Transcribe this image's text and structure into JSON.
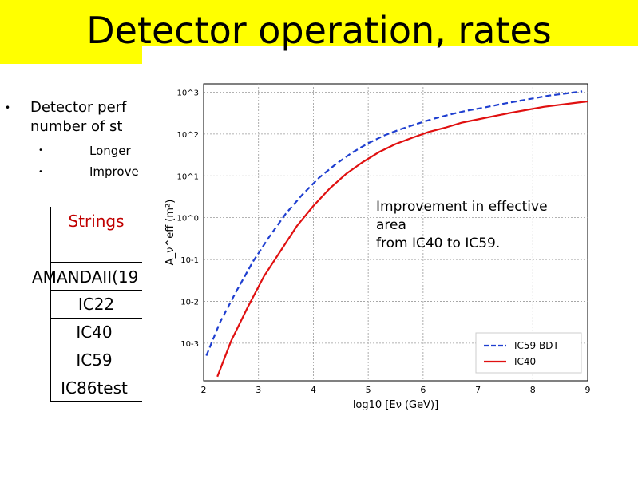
{
  "slide": {
    "title": "Detector operation, rates",
    "bullets": [
      {
        "text": "Detector perf"
      },
      {
        "text": "number of st"
      }
    ],
    "sub_bullets": [
      "Longer",
      "Improve"
    ],
    "table": {
      "header": "Strings",
      "rows": [
        "AMANDAII(19",
        "IC22",
        "IC40",
        "IC59",
        "IC86test"
      ]
    },
    "annotation": [
      "Improvement in effective",
      "area",
      "from IC40 to IC59."
    ]
  },
  "colors": {
    "title_bg": "#ffff00",
    "ic59": "#1f3fd0",
    "ic40": "#e01010",
    "header_text": "#c00000"
  },
  "chart_data": {
    "type": "line",
    "xlabel": "log10 [Eν (GeV)]",
    "ylabel": "A_ν^eff (m²)",
    "x_ticks": [
      "2",
      "3",
      "4",
      "5",
      "6",
      "7",
      "8",
      "9"
    ],
    "y_ticks": [
      "10-3",
      "10-2",
      "10-1",
      "10^0",
      "10^1",
      "10^2",
      "10^3"
    ],
    "xlim": [
      2,
      9
    ],
    "ylim_log10": [
      -3.9,
      3.2
    ],
    "yscale": "log",
    "grid": true,
    "legend_position": "lower-right",
    "series": [
      {
        "name": "IC59 BDT",
        "style": "dashed",
        "color": "#1f3fd0",
        "x": [
          2.05,
          2.3,
          2.6,
          2.9,
          3.2,
          3.5,
          3.8,
          4.1,
          4.4,
          4.7,
          5.0,
          5.3,
          5.6,
          5.9,
          6.2,
          6.5,
          6.8,
          7.1,
          7.4,
          7.7,
          8.0,
          8.3,
          8.6,
          8.9
        ],
        "log10_y": [
          -3.3,
          -2.5,
          -1.75,
          -1.05,
          -0.45,
          0.1,
          0.55,
          0.95,
          1.27,
          1.55,
          1.78,
          1.97,
          2.12,
          2.25,
          2.37,
          2.47,
          2.56,
          2.63,
          2.71,
          2.78,
          2.85,
          2.92,
          2.97,
          3.02
        ]
      },
      {
        "name": "IC40",
        "style": "solid",
        "color": "#e01010",
        "x": [
          2.25,
          2.5,
          2.8,
          3.1,
          3.4,
          3.7,
          4.0,
          4.3,
          4.6,
          4.9,
          5.2,
          5.5,
          5.8,
          6.1,
          6.4,
          6.7,
          7.0,
          7.3,
          7.6,
          7.9,
          8.2,
          8.5,
          8.8,
          9.0
        ],
        "log10_y": [
          -3.8,
          -2.95,
          -2.15,
          -1.4,
          -0.8,
          -0.2,
          0.28,
          0.7,
          1.05,
          1.33,
          1.57,
          1.76,
          1.91,
          2.05,
          2.15,
          2.27,
          2.35,
          2.43,
          2.51,
          2.58,
          2.65,
          2.7,
          2.75,
          2.78
        ]
      }
    ]
  }
}
